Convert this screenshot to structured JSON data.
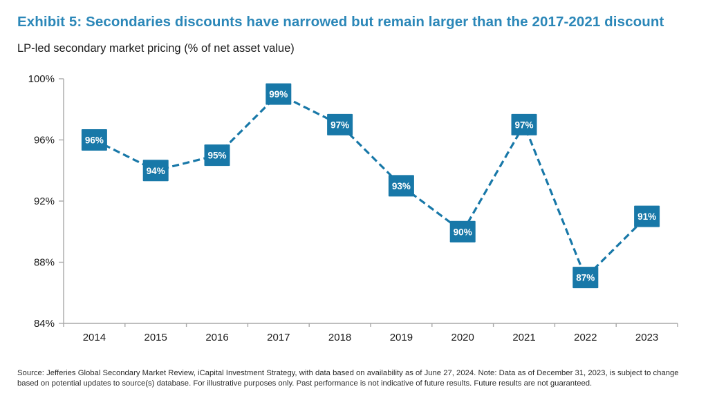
{
  "header": {
    "title": "Exhibit 5: Secondaries discounts have narrowed but remain larger than the 2017-2021 discount",
    "subtitle": "LP-led secondary market pricing (% of net asset value)"
  },
  "chart_data": {
    "type": "line",
    "style": "dashed-line-with-square-value-labels",
    "categories": [
      "2014",
      "2015",
      "2016",
      "2017",
      "2018",
      "2019",
      "2020",
      "2021",
      "2022",
      "2023"
    ],
    "values": [
      96,
      94,
      95,
      99,
      97,
      93,
      90,
      97,
      87,
      91
    ],
    "unit": "%",
    "title": "LP-led secondary market pricing (% of net asset value)",
    "xlabel": "",
    "ylabel": "",
    "ylim": [
      84,
      100
    ],
    "yticks": [
      84,
      88,
      92,
      96,
      100
    ],
    "grid": false,
    "legend": null,
    "colors": {
      "line": "#1878a8",
      "marker_fill": "#1878a8",
      "marker_text": "#ffffff",
      "axis": "#a8a8a8",
      "tick_label": "#1a1a1a",
      "title_accent": "#2b87b8"
    }
  },
  "footer": {
    "source_line1": "Source: Jefferies Global Secondary Market Review, iCapital Investment Strategy, with data based on availability as of June 27, 2024. Note: Data as of December 31, 2023, is subject to change",
    "source_line2": "based on potential updates to source(s) database. For illustrative purposes only. Past performance is not indicative of future results. Future results are not guaranteed."
  }
}
